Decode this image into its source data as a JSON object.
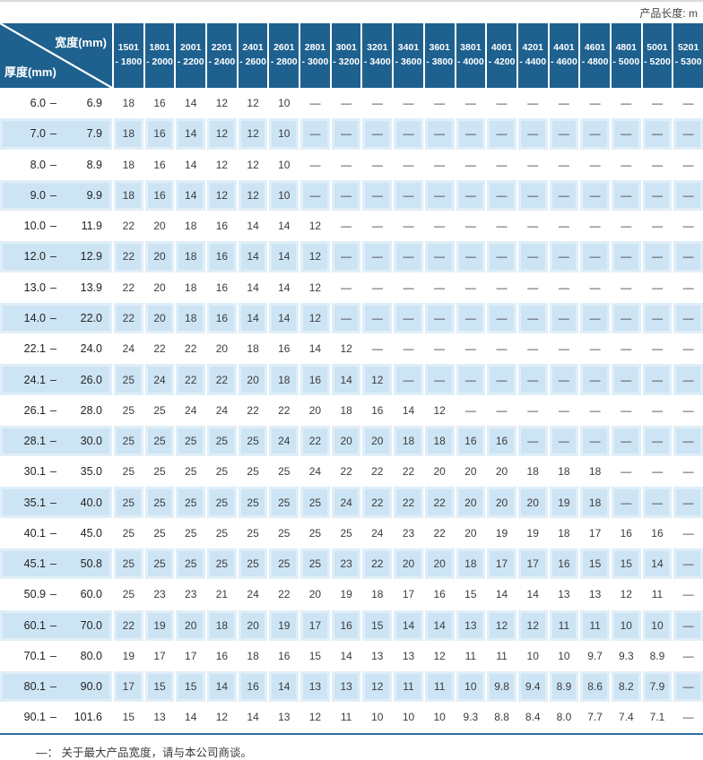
{
  "page": {
    "product_length_label": "产品长度: m",
    "footnote": "—： 关于最大产品宽度，请与本公司商谈。"
  },
  "colors": {
    "header_blue": "#1e618f",
    "stripe_blue": "#cde4f4",
    "rule_blue": "#2f6da4",
    "text_dark": "#3c3c3c"
  },
  "table": {
    "corner": {
      "top_right": "宽度(mm)",
      "bottom_left": "厚度(mm)"
    },
    "range_dash": "–",
    "width_columns": [
      {
        "label": "1501\n- 1800"
      },
      {
        "label": "1801\n- 2000"
      },
      {
        "label": "2001\n- 2200"
      },
      {
        "label": "2201\n- 2400"
      },
      {
        "label": "2401\n- 2600"
      },
      {
        "label": "2601\n- 2800"
      },
      {
        "label": "2801\n- 3000"
      },
      {
        "label": "3001\n- 3200"
      },
      {
        "label": "3201\n- 3400"
      },
      {
        "label": "3401\n- 3600"
      },
      {
        "label": "3601\n- 3800"
      },
      {
        "label": "3801\n- 4000"
      },
      {
        "label": "4001\n- 4200"
      },
      {
        "label": "4201\n- 4400"
      },
      {
        "label": "4401\n- 4600"
      },
      {
        "label": "4601\n- 4800"
      },
      {
        "label": "4801\n- 5000"
      },
      {
        "label": "5001\n- 5200"
      },
      {
        "label": "5201\n- 5300"
      }
    ],
    "rows": [
      {
        "min": "6.0",
        "max": "6.9",
        "values": [
          "18",
          "16",
          "14",
          "12",
          "12",
          "10",
          "—",
          "—",
          "—",
          "—",
          "—",
          "—",
          "—",
          "—",
          "—",
          "—",
          "—",
          "—",
          "—"
        ]
      },
      {
        "min": "7.0",
        "max": "7.9",
        "values": [
          "18",
          "16",
          "14",
          "12",
          "12",
          "10",
          "—",
          "—",
          "—",
          "—",
          "—",
          "—",
          "—",
          "—",
          "—",
          "—",
          "—",
          "—",
          "—"
        ]
      },
      {
        "min": "8.0",
        "max": "8.9",
        "values": [
          "18",
          "16",
          "14",
          "12",
          "12",
          "10",
          "—",
          "—",
          "—",
          "—",
          "—",
          "—",
          "—",
          "—",
          "—",
          "—",
          "—",
          "—",
          "—"
        ]
      },
      {
        "min": "9.0",
        "max": "9.9",
        "values": [
          "18",
          "16",
          "14",
          "12",
          "12",
          "10",
          "—",
          "—",
          "—",
          "—",
          "—",
          "—",
          "—",
          "—",
          "—",
          "—",
          "—",
          "—",
          "—"
        ]
      },
      {
        "min": "10.0",
        "max": "11.9",
        "values": [
          "22",
          "20",
          "18",
          "16",
          "14",
          "14",
          "12",
          "—",
          "—",
          "—",
          "—",
          "—",
          "—",
          "—",
          "—",
          "—",
          "—",
          "—",
          "—"
        ]
      },
      {
        "min": "12.0",
        "max": "12.9",
        "values": [
          "22",
          "20",
          "18",
          "16",
          "14",
          "14",
          "12",
          "—",
          "—",
          "—",
          "—",
          "—",
          "—",
          "—",
          "—",
          "—",
          "—",
          "—",
          "—"
        ]
      },
      {
        "min": "13.0",
        "max": "13.9",
        "values": [
          "22",
          "20",
          "18",
          "16",
          "14",
          "14",
          "12",
          "—",
          "—",
          "—",
          "—",
          "—",
          "—",
          "—",
          "—",
          "—",
          "—",
          "—",
          "—"
        ]
      },
      {
        "min": "14.0",
        "max": "22.0",
        "values": [
          "22",
          "20",
          "18",
          "16",
          "14",
          "14",
          "12",
          "—",
          "—",
          "—",
          "—",
          "—",
          "—",
          "—",
          "—",
          "—",
          "—",
          "—",
          "—"
        ]
      },
      {
        "min": "22.1",
        "max": "24.0",
        "values": [
          "24",
          "22",
          "22",
          "20",
          "18",
          "16",
          "14",
          "12",
          "—",
          "—",
          "—",
          "—",
          "—",
          "—",
          "—",
          "—",
          "—",
          "—",
          "—"
        ]
      },
      {
        "min": "24.1",
        "max": "26.0",
        "values": [
          "25",
          "24",
          "22",
          "22",
          "20",
          "18",
          "16",
          "14",
          "12",
          "—",
          "—",
          "—",
          "—",
          "—",
          "—",
          "—",
          "—",
          "—",
          "—"
        ]
      },
      {
        "min": "26.1",
        "max": "28.0",
        "values": [
          "25",
          "25",
          "24",
          "24",
          "22",
          "22",
          "20",
          "18",
          "16",
          "14",
          "12",
          "—",
          "—",
          "—",
          "—",
          "—",
          "—",
          "—",
          "—"
        ]
      },
      {
        "min": "28.1",
        "max": "30.0",
        "values": [
          "25",
          "25",
          "25",
          "25",
          "25",
          "24",
          "22",
          "20",
          "20",
          "18",
          "18",
          "16",
          "16",
          "—",
          "—",
          "—",
          "—",
          "—",
          "—"
        ]
      },
      {
        "min": "30.1",
        "max": "35.0",
        "values": [
          "25",
          "25",
          "25",
          "25",
          "25",
          "25",
          "24",
          "22",
          "22",
          "22",
          "20",
          "20",
          "20",
          "18",
          "18",
          "18",
          "—",
          "—",
          "—"
        ]
      },
      {
        "min": "35.1",
        "max": "40.0",
        "values": [
          "25",
          "25",
          "25",
          "25",
          "25",
          "25",
          "25",
          "24",
          "22",
          "22",
          "22",
          "20",
          "20",
          "20",
          "19",
          "18",
          "—",
          "—",
          "—"
        ]
      },
      {
        "min": "40.1",
        "max": "45.0",
        "values": [
          "25",
          "25",
          "25",
          "25",
          "25",
          "25",
          "25",
          "25",
          "24",
          "23",
          "22",
          "20",
          "19",
          "19",
          "18",
          "17",
          "16",
          "16",
          "—"
        ]
      },
      {
        "min": "45.1",
        "max": "50.8",
        "values": [
          "25",
          "25",
          "25",
          "25",
          "25",
          "25",
          "25",
          "23",
          "22",
          "20",
          "20",
          "18",
          "17",
          "17",
          "16",
          "15",
          "15",
          "14",
          "—"
        ]
      },
      {
        "min": "50.9",
        "max": "60.0",
        "values": [
          "25",
          "23",
          "23",
          "21",
          "24",
          "22",
          "20",
          "19",
          "18",
          "17",
          "16",
          "15",
          "14",
          "14",
          "13",
          "13",
          "12",
          "11",
          "—"
        ]
      },
      {
        "min": "60.1",
        "max": "70.0",
        "values": [
          "22",
          "19",
          "20",
          "18",
          "20",
          "19",
          "17",
          "16",
          "15",
          "14",
          "14",
          "13",
          "12",
          "12",
          "11",
          "11",
          "10",
          "10",
          "—"
        ]
      },
      {
        "min": "70.1",
        "max": "80.0",
        "values": [
          "19",
          "17",
          "17",
          "16",
          "18",
          "16",
          "15",
          "14",
          "13",
          "13",
          "12",
          "11",
          "11",
          "10",
          "10",
          "9.7",
          "9.3",
          "8.9",
          "—"
        ]
      },
      {
        "min": "80.1",
        "max": "90.0",
        "values": [
          "17",
          "15",
          "15",
          "14",
          "16",
          "14",
          "13",
          "13",
          "12",
          "11",
          "11",
          "10",
          "9.8",
          "9.4",
          "8.9",
          "8.6",
          "8.2",
          "7.9",
          "—"
        ]
      },
      {
        "min": "90.1",
        "max": "101.6",
        "values": [
          "15",
          "13",
          "14",
          "12",
          "14",
          "13",
          "12",
          "11",
          "10",
          "10",
          "10",
          "9.3",
          "8.8",
          "8.4",
          "8.0",
          "7.7",
          "7.4",
          "7.1",
          "—"
        ]
      }
    ]
  }
}
